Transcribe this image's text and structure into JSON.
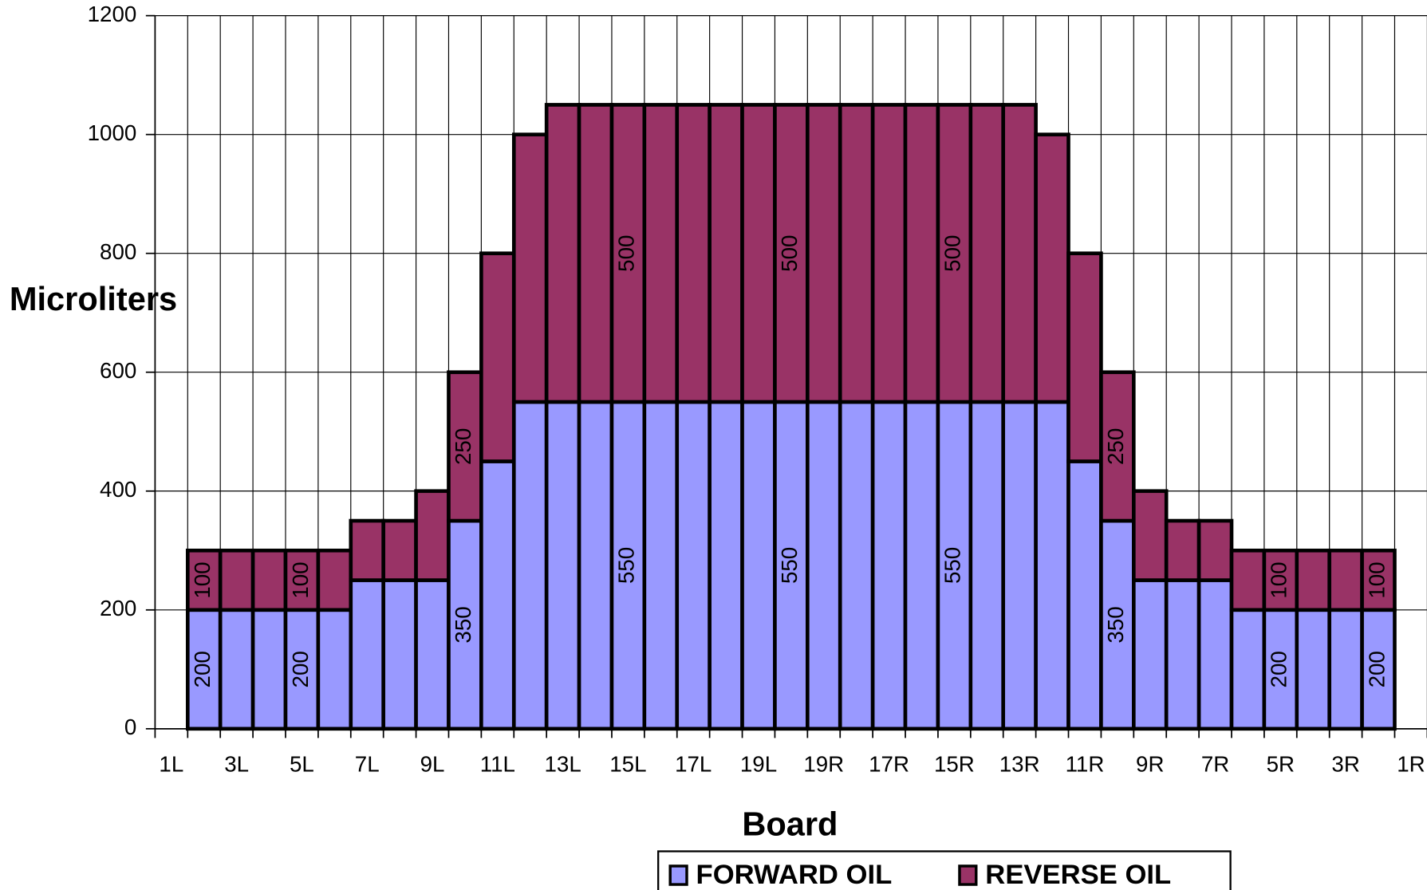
{
  "chart_data": {
    "type": "stacked_bar",
    "xlabel": "Board",
    "ylabel": "Microliters",
    "categories": [
      "1L",
      null,
      "3L",
      null,
      "5L",
      null,
      "7L",
      null,
      "9L",
      null,
      "11L",
      null,
      "13L",
      null,
      "15L",
      null,
      "17L",
      null,
      "19L",
      null,
      "19R",
      null,
      "17R",
      null,
      "15R",
      null,
      "13R",
      null,
      "11R",
      null,
      "9R",
      null,
      "7R",
      null,
      "5R",
      null,
      "3R",
      null,
      "1R"
    ],
    "series": [
      {
        "name": "FORWARD OIL",
        "color": "#9999ff",
        "values": [
          null,
          200,
          200,
          200,
          200,
          200,
          250,
          250,
          250,
          350,
          450,
          550,
          550,
          550,
          550,
          550,
          550,
          550,
          550,
          550,
          550,
          550,
          550,
          550,
          550,
          550,
          550,
          550,
          450,
          350,
          250,
          250,
          250,
          200,
          200,
          200,
          200,
          200,
          null
        ],
        "value_labels": [
          null,
          "200",
          null,
          null,
          "200",
          null,
          null,
          null,
          null,
          "350",
          null,
          null,
          null,
          null,
          "550",
          null,
          null,
          null,
          null,
          "550",
          null,
          null,
          null,
          null,
          "550",
          null,
          null,
          null,
          null,
          "350",
          null,
          null,
          null,
          null,
          "200",
          null,
          null,
          "200",
          null
        ]
      },
      {
        "name": "REVERSE OIL",
        "color": "#993366",
        "values": [
          null,
          100,
          100,
          100,
          100,
          100,
          100,
          100,
          150,
          250,
          350,
          450,
          500,
          500,
          500,
          500,
          500,
          500,
          500,
          500,
          500,
          500,
          500,
          500,
          500,
          500,
          500,
          450,
          350,
          250,
          150,
          100,
          100,
          100,
          100,
          100,
          100,
          100,
          null
        ],
        "value_labels": [
          null,
          "100",
          null,
          null,
          "100",
          null,
          null,
          null,
          null,
          "250",
          null,
          null,
          null,
          null,
          "500",
          null,
          null,
          null,
          null,
          "500",
          null,
          null,
          null,
          null,
          "500",
          null,
          null,
          null,
          null,
          "250",
          null,
          null,
          null,
          null,
          "100",
          null,
          null,
          "100",
          null
        ]
      }
    ],
    "ylim": [
      0,
      1200
    ],
    "yticks": [
      0,
      200,
      400,
      600,
      800,
      1000,
      1200
    ],
    "grid": true,
    "legend": "bottom"
  }
}
